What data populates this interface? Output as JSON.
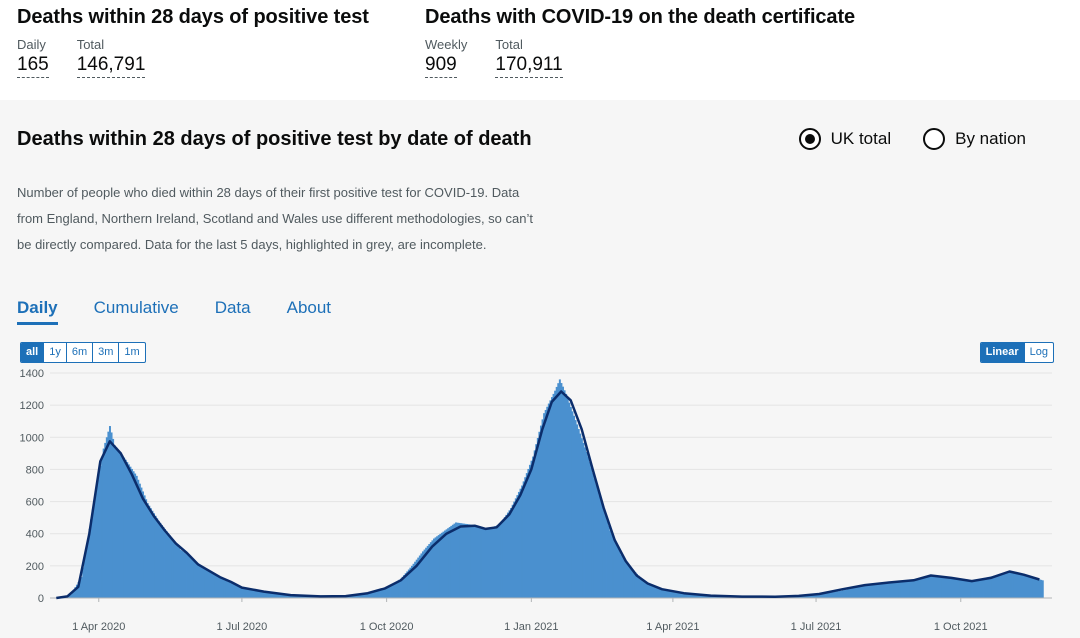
{
  "summary_left": {
    "title": "Deaths within 28 days of positive test",
    "metrics": [
      {
        "label": "Daily",
        "value": "165"
      },
      {
        "label": "Total",
        "value": "146,791"
      }
    ]
  },
  "summary_right": {
    "title": "Deaths with COVID-19 on the death certificate",
    "metrics": [
      {
        "label": "Weekly",
        "value": "909"
      },
      {
        "label": "Total",
        "value": "170,911"
      }
    ]
  },
  "card": {
    "title": "Deaths within 28 days of positive test by date of death",
    "radio_uk": "UK total",
    "radio_nation": "By nation",
    "description": "Number of people who died within 28 days of their first positive test for COVID-19. Data from England, Northern Ireland, Scotland and Wales use different methodologies, so can’t be directly compared. Data for the last 5 days, highlighted in grey, are incomplete.",
    "tabs": [
      "Daily",
      "Cumulative",
      "Data",
      "About"
    ],
    "ranges": [
      "all",
      "1y",
      "6m",
      "3m",
      "1m"
    ],
    "scales": [
      "Linear",
      "Log"
    ]
  },
  "colors": {
    "bar": "#4a90cf",
    "avg_line": "#0b2d6b",
    "incomplete": "#b1b4b6",
    "accent": "#1d70b8"
  },
  "chart_data": {
    "type": "bar",
    "x_axis": "date",
    "y_ticks": [
      0,
      200,
      400,
      600,
      800,
      1000,
      1200,
      1400
    ],
    "ylim": [
      0,
      1400
    ],
    "xlim": [
      "2020-03-01",
      "2021-11-28"
    ],
    "x_ticks": [
      {
        "date": "2020-04-01",
        "label": "1 Apr 2020"
      },
      {
        "date": "2020-07-01",
        "label": "1 Jul 2020"
      },
      {
        "date": "2020-10-01",
        "label": "1 Oct 2020"
      },
      {
        "date": "2021-01-01",
        "label": "1 Jan 2021"
      },
      {
        "date": "2021-04-01",
        "label": "1 Apr 2021"
      },
      {
        "date": "2021-07-01",
        "label": "1 Jul 2021"
      },
      {
        "date": "2021-10-01",
        "label": "1 Oct 2021"
      }
    ],
    "series": [
      {
        "kind": "bars",
        "points": [
          [
            "2020-03-07",
            2
          ],
          [
            "2020-03-14",
            20
          ],
          [
            "2020-03-21",
            130
          ],
          [
            "2020-03-28",
            550
          ],
          [
            "2020-04-04",
            930
          ],
          [
            "2020-04-08",
            1070
          ],
          [
            "2020-04-11",
            950
          ],
          [
            "2020-04-18",
            860
          ],
          [
            "2020-04-25",
            760
          ],
          [
            "2020-05-02",
            590
          ],
          [
            "2020-05-09",
            480
          ],
          [
            "2020-05-16",
            390
          ],
          [
            "2020-05-23",
            300
          ],
          [
            "2020-05-30",
            250
          ],
          [
            "2020-06-06",
            190
          ],
          [
            "2020-06-13",
            150
          ],
          [
            "2020-06-20",
            110
          ],
          [
            "2020-06-27",
            80
          ],
          [
            "2020-07-04",
            60
          ],
          [
            "2020-07-18",
            35
          ],
          [
            "2020-08-01",
            18
          ],
          [
            "2020-08-15",
            12
          ],
          [
            "2020-08-29",
            10
          ],
          [
            "2020-09-12",
            18
          ],
          [
            "2020-09-26",
            45
          ],
          [
            "2020-10-03",
            75
          ],
          [
            "2020-10-10",
            120
          ],
          [
            "2020-10-17",
            200
          ],
          [
            "2020-10-24",
            290
          ],
          [
            "2020-10-31",
            370
          ],
          [
            "2020-11-07",
            420
          ],
          [
            "2020-11-14",
            470
          ],
          [
            "2020-11-21",
            460
          ],
          [
            "2020-11-28",
            450
          ],
          [
            "2020-12-05",
            430
          ],
          [
            "2020-12-12",
            460
          ],
          [
            "2020-12-19",
            560
          ],
          [
            "2020-12-26",
            700
          ],
          [
            "2021-01-02",
            880
          ],
          [
            "2021-01-09",
            1150
          ],
          [
            "2021-01-16",
            1290
          ],
          [
            "2021-01-19",
            1360
          ],
          [
            "2021-01-23",
            1270
          ],
          [
            "2021-01-30",
            1080
          ],
          [
            "2021-02-06",
            880
          ],
          [
            "2021-02-13",
            640
          ],
          [
            "2021-02-20",
            420
          ],
          [
            "2021-02-27",
            270
          ],
          [
            "2021-03-06",
            180
          ],
          [
            "2021-03-13",
            110
          ],
          [
            "2021-03-20",
            70
          ],
          [
            "2021-03-27",
            45
          ],
          [
            "2021-04-10",
            28
          ],
          [
            "2021-04-24",
            18
          ],
          [
            "2021-05-08",
            10
          ],
          [
            "2021-05-22",
            8
          ],
          [
            "2021-06-05",
            8
          ],
          [
            "2021-06-19",
            12
          ],
          [
            "2021-07-03",
            22
          ],
          [
            "2021-07-17",
            45
          ],
          [
            "2021-07-31",
            75
          ],
          [
            "2021-08-14",
            90
          ],
          [
            "2021-08-28",
            105
          ],
          [
            "2021-09-11",
            140
          ],
          [
            "2021-09-25",
            130
          ],
          [
            "2021-10-09",
            110
          ],
          [
            "2021-10-23",
            140
          ],
          [
            "2021-11-01",
            170
          ],
          [
            "2021-11-08",
            150
          ],
          [
            "2021-11-15",
            130
          ],
          [
            "2021-11-22",
            110
          ]
        ]
      },
      {
        "kind": "rolling_average",
        "points": [
          [
            "2020-03-05",
            0
          ],
          [
            "2020-03-12",
            10
          ],
          [
            "2020-03-19",
            70
          ],
          [
            "2020-03-26",
            400
          ],
          [
            "2020-04-02",
            850
          ],
          [
            "2020-04-08",
            975
          ],
          [
            "2020-04-15",
            900
          ],
          [
            "2020-04-22",
            770
          ],
          [
            "2020-04-29",
            620
          ],
          [
            "2020-05-06",
            510
          ],
          [
            "2020-05-13",
            420
          ],
          [
            "2020-05-20",
            340
          ],
          [
            "2020-05-27",
            280
          ],
          [
            "2020-06-03",
            210
          ],
          [
            "2020-06-10",
            170
          ],
          [
            "2020-06-17",
            130
          ],
          [
            "2020-06-24",
            100
          ],
          [
            "2020-07-01",
            65
          ],
          [
            "2020-07-15",
            40
          ],
          [
            "2020-08-01",
            18
          ],
          [
            "2020-08-20",
            10
          ],
          [
            "2020-09-05",
            12
          ],
          [
            "2020-09-19",
            30
          ],
          [
            "2020-09-30",
            60
          ],
          [
            "2020-10-10",
            110
          ],
          [
            "2020-10-20",
            200
          ],
          [
            "2020-10-30",
            320
          ],
          [
            "2020-11-08",
            400
          ],
          [
            "2020-11-17",
            445
          ],
          [
            "2020-11-26",
            450
          ],
          [
            "2020-12-03",
            430
          ],
          [
            "2020-12-10",
            440
          ],
          [
            "2020-12-18",
            520
          ],
          [
            "2020-12-25",
            640
          ],
          [
            "2021-01-01",
            800
          ],
          [
            "2021-01-08",
            1050
          ],
          [
            "2021-01-14",
            1220
          ],
          [
            "2021-01-20",
            1285
          ],
          [
            "2021-01-26",
            1230
          ],
          [
            "2021-02-02",
            1050
          ],
          [
            "2021-02-09",
            800
          ],
          [
            "2021-02-16",
            560
          ],
          [
            "2021-02-23",
            360
          ],
          [
            "2021-03-02",
            230
          ],
          [
            "2021-03-09",
            140
          ],
          [
            "2021-03-16",
            90
          ],
          [
            "2021-03-25",
            55
          ],
          [
            "2021-04-08",
            30
          ],
          [
            "2021-04-25",
            15
          ],
          [
            "2021-05-15",
            9
          ],
          [
            "2021-06-05",
            8
          ],
          [
            "2021-06-20",
            13
          ],
          [
            "2021-07-03",
            25
          ],
          [
            "2021-07-18",
            55
          ],
          [
            "2021-08-01",
            80
          ],
          [
            "2021-08-15",
            95
          ],
          [
            "2021-09-01",
            110
          ],
          [
            "2021-09-12",
            140
          ],
          [
            "2021-09-25",
            125
          ],
          [
            "2021-10-08",
            105
          ],
          [
            "2021-10-20",
            125
          ],
          [
            "2021-11-01",
            165
          ],
          [
            "2021-11-10",
            145
          ],
          [
            "2021-11-20",
            115
          ]
        ]
      }
    ],
    "incomplete_from": "2021-11-23",
    "grid": true
  }
}
